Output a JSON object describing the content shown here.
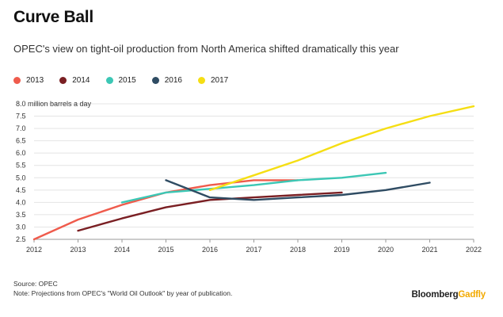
{
  "title": "Curve Ball",
  "subtitle": "OPEC's view on tight-oil production from North America shifted dramatically this year",
  "footer": {
    "source": "Source: OPEC",
    "note": "Note: Projections from OPEC's \"World Oil Outlook\" by year of publication.",
    "brand_part1": "Bloomberg",
    "brand_part2": "Gadfly"
  },
  "chart_data": {
    "type": "line",
    "title": "Curve Ball",
    "ylabel": "million barrels a day",
    "xlabel": "",
    "x_ticks": [
      2012,
      2013,
      2014,
      2015,
      2016,
      2017,
      2018,
      2019,
      2020,
      2021,
      2022
    ],
    "y_ticks": [
      "2.5",
      "3.0",
      "3.5",
      "4.0",
      "4.5",
      "5.0",
      "5.5",
      "6.0",
      "6.5",
      "7.0",
      "7.5",
      "8.0 million barrels a day"
    ],
    "xlim": [
      2012,
      2022
    ],
    "ylim": [
      2.5,
      8.0
    ],
    "legend_position": "top-left",
    "series": [
      {
        "name": "2013",
        "color": "#ef5b4c",
        "points": [
          [
            2012,
            2.5
          ],
          [
            2013,
            3.3
          ],
          [
            2014,
            3.9
          ],
          [
            2015,
            4.4
          ],
          [
            2016,
            4.7
          ],
          [
            2017,
            4.9
          ],
          [
            2018,
            4.9
          ]
        ]
      },
      {
        "name": "2014",
        "color": "#7a1f23",
        "points": [
          [
            2013,
            2.85
          ],
          [
            2014,
            3.35
          ],
          [
            2015,
            3.8
          ],
          [
            2016,
            4.1
          ],
          [
            2017,
            4.2
          ],
          [
            2018,
            4.3
          ],
          [
            2019,
            4.4
          ]
        ]
      },
      {
        "name": "2015",
        "color": "#3cc7b5",
        "points": [
          [
            2014,
            4.0
          ],
          [
            2015,
            4.4
          ],
          [
            2016,
            4.55
          ],
          [
            2017,
            4.7
          ],
          [
            2018,
            4.9
          ],
          [
            2019,
            5.0
          ],
          [
            2020,
            5.2
          ]
        ]
      },
      {
        "name": "2016",
        "color": "#2f4c63",
        "points": [
          [
            2015,
            4.9
          ],
          [
            2016,
            4.2
          ],
          [
            2017,
            4.1
          ],
          [
            2018,
            4.2
          ],
          [
            2019,
            4.3
          ],
          [
            2020,
            4.5
          ],
          [
            2021,
            4.8
          ]
        ]
      },
      {
        "name": "2017",
        "color": "#f5de14",
        "points": [
          [
            2016,
            4.5
          ],
          [
            2017,
            5.1
          ],
          [
            2018,
            5.7
          ],
          [
            2019,
            6.4
          ],
          [
            2020,
            7.0
          ],
          [
            2021,
            7.5
          ],
          [
            2022,
            7.9
          ]
        ]
      }
    ]
  }
}
